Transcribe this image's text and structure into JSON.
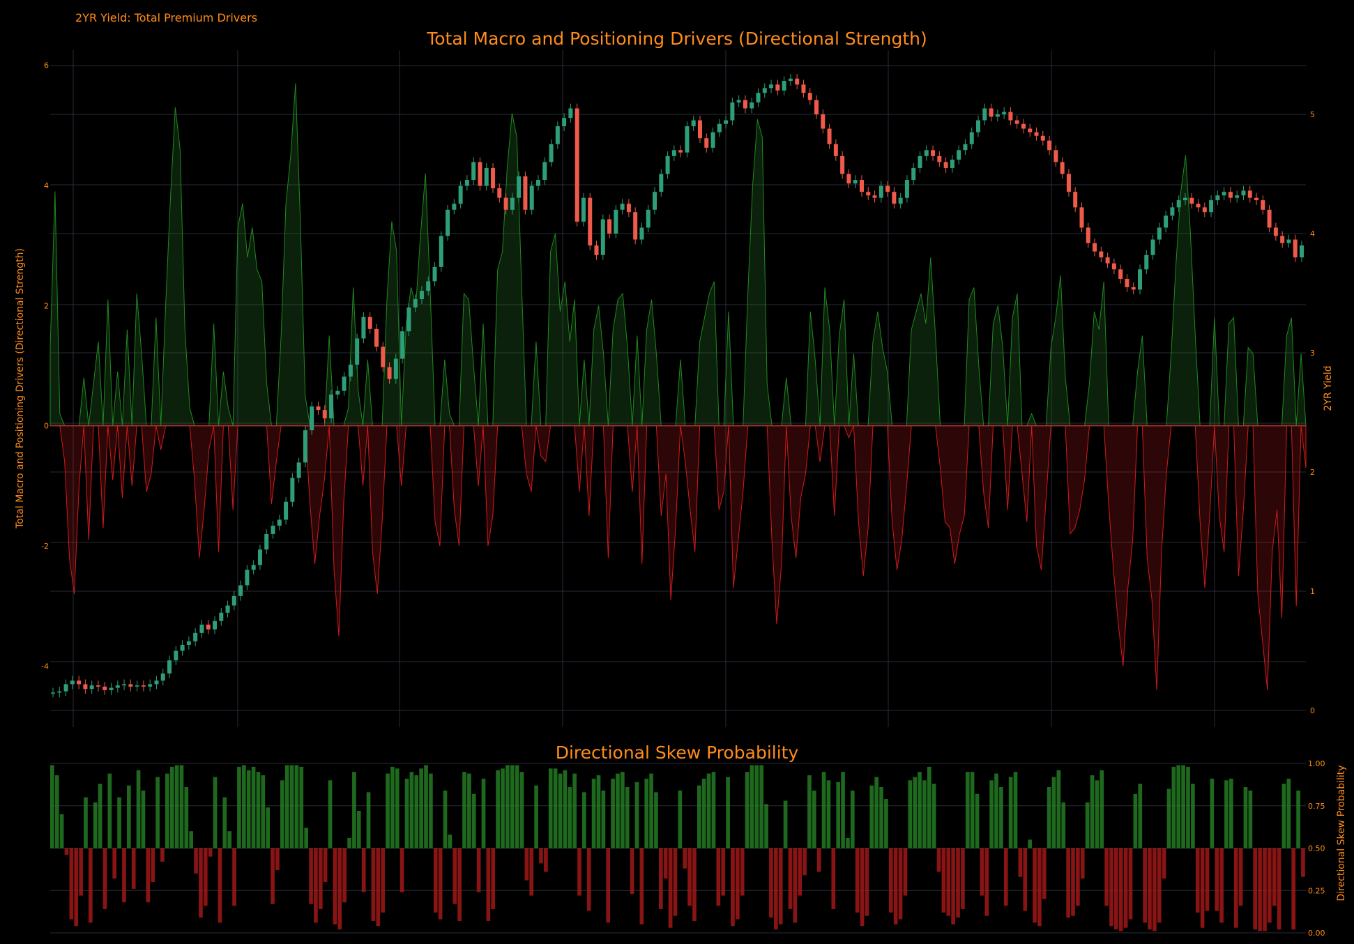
{
  "page_label": "2YR Yield: Total Premium Drivers",
  "colors": {
    "background": "#000000",
    "text": "#ff8c1a",
    "grid": "#2a2d3a",
    "positive": "#1f8a1f",
    "negative": "#d41a1a",
    "candle_up": "#2e9e78",
    "candle_down": "#ef5a4a"
  },
  "chart_data": [
    {
      "type": "area",
      "title": "Total Macro and Positioning Drivers (Directional Strength)",
      "ylabel": "Total Macro and Positioning Drivers (Directional Strength)",
      "y2label": "2YR Yield",
      "ylim": [
        -4.75,
        6.25
      ],
      "y_ticks": [
        -4,
        -2,
        0,
        2,
        4,
        6
      ],
      "y2lim": [
        0,
        5.4
      ],
      "y2_ticks": [
        0,
        1,
        2,
        3,
        4,
        5
      ],
      "grid": true,
      "legend": "none",
      "series": [
        {
          "kind": "area",
          "values": [
            1.3,
            3.9,
            0.2,
            -0.6,
            -2.2,
            -2.8,
            -1.0,
            0.8,
            -1.9,
            0.7,
            1.4,
            -1.7,
            2.1,
            -0.9,
            0.9,
            -1.2,
            1.6,
            -1.0,
            2.2,
            1.2,
            -1.1,
            -0.8,
            1.8,
            -0.4,
            2.0,
            3.8,
            5.3,
            4.6,
            1.6,
            0.3,
            -0.9,
            -2.2,
            -1.4,
            -0.4,
            1.7,
            -2.1,
            0.9,
            0.3,
            -1.4,
            3.3,
            3.7,
            2.8,
            3.3,
            2.6,
            2.4,
            0.7,
            -1.3,
            -0.6,
            1.5,
            3.7,
            4.5,
            5.7,
            3.4,
            0.5,
            -1.3,
            -2.3,
            -1.5,
            -0.9,
            1.5,
            -2.4,
            -3.5,
            -1.3,
            0.3,
            2.3,
            0.6,
            -1.0,
            1.1,
            -2.1,
            -2.8,
            -1.6,
            2.1,
            3.4,
            2.9,
            -1.0,
            1.7,
            2.3,
            2.0,
            3.2,
            4.2,
            2.2,
            -1.6,
            -2.0,
            1.1,
            0.2,
            -1.4,
            -2.0,
            2.2,
            2.1,
            1.0,
            -1.0,
            1.7,
            -2.0,
            -1.5,
            2.6,
            2.9,
            4.3,
            5.2,
            4.8,
            2.3,
            -0.8,
            -1.1,
            1.4,
            -0.5,
            -0.6,
            2.9,
            3.2,
            1.9,
            2.4,
            1.4,
            2.1,
            -1.1,
            1.1,
            -1.5,
            1.6,
            2.0,
            1.2,
            -2.2,
            1.6,
            2.1,
            2.2,
            1.3,
            -1.1,
            1.5,
            -2.3,
            1.6,
            2.1,
            1.2,
            -1.5,
            -0.8,
            -2.9,
            -1.7,
            1.1,
            -0.6,
            -1.4,
            -2.1,
            1.4,
            1.8,
            2.2,
            2.4,
            -1.4,
            -1.1,
            1.9,
            -2.7,
            -1.9,
            -1.1,
            2.2,
            4.0,
            5.1,
            4.8,
            0.7,
            -1.9,
            -3.3,
            -2.3,
            0.8,
            -1.5,
            -2.2,
            -1.2,
            -0.8,
            1.9,
            1.1,
            -0.6,
            2.3,
            1.6,
            -1.5,
            1.5,
            2.1,
            -0.2,
            1.2,
            -1.6,
            -2.5,
            -1.7,
            1.4,
            1.9,
            1.3,
            0.9,
            -1.6,
            -2.4,
            -1.9,
            -1.0,
            1.6,
            1.9,
            2.2,
            1.7,
            2.8,
            1.5,
            -0.7,
            -1.6,
            -1.7,
            -2.3,
            -1.8,
            -1.5,
            2.1,
            2.3,
            1.0,
            -1.1,
            -1.7,
            1.7,
            2.0,
            1.3,
            -1.4,
            1.8,
            2.2,
            -0.8,
            -1.6,
            0.2,
            -2.0,
            -2.4,
            -1.2,
            1.3,
            1.8,
            2.5,
            0.8,
            -1.8,
            -1.7,
            -1.4,
            -0.9,
            0.7,
            1.9,
            1.6,
            2.4,
            -1.3,
            -2.4,
            -3.3,
            -4.0,
            -2.7,
            -1.9,
            0.9,
            1.5,
            -2.2,
            -2.9,
            -4.4,
            -2.1,
            -0.8,
            1.2,
            2.7,
            3.9,
            4.5,
            3.2,
            1.5,
            -1.6,
            -2.7,
            -1.5,
            1.8,
            -1.5,
            -2.1,
            1.7,
            1.8,
            -2.5,
            -1.4,
            1.3,
            1.2,
            -2.8,
            -3.6,
            -4.4,
            -2.1,
            -1.4,
            -3.2,
            1.5,
            1.8,
            -3.0,
            1.2,
            -0.7
          ]
        },
        {
          "kind": "candlestick",
          "axis": "right",
          "name": "2YR Yield",
          "values": [
            0.15,
            0.16,
            0.22,
            0.25,
            0.22,
            0.18,
            0.21,
            0.2,
            0.17,
            0.19,
            0.21,
            0.22,
            0.2,
            0.21,
            0.2,
            0.22,
            0.25,
            0.31,
            0.42,
            0.5,
            0.55,
            0.58,
            0.65,
            0.72,
            0.68,
            0.75,
            0.82,
            0.88,
            0.96,
            1.05,
            1.18,
            1.22,
            1.35,
            1.48,
            1.55,
            1.6,
            1.75,
            1.95,
            2.08,
            2.35,
            2.55,
            2.52,
            2.45,
            2.65,
            2.68,
            2.8,
            2.9,
            3.12,
            3.3,
            3.2,
            3.05,
            2.88,
            2.78,
            2.95,
            3.18,
            3.38,
            3.45,
            3.52,
            3.6,
            3.72,
            3.98,
            4.2,
            4.25,
            4.4,
            4.45,
            4.6,
            4.4,
            4.55,
            4.38,
            4.3,
            4.2,
            4.3,
            4.48,
            4.2,
            4.4,
            4.45,
            4.6,
            4.75,
            4.9,
            4.97,
            5.05,
            4.1,
            4.3,
            3.9,
            3.82,
            4.12,
            4.0,
            4.2,
            4.25,
            4.18,
            3.95,
            4.05,
            4.2,
            4.35,
            4.5,
            4.65,
            4.7,
            4.68,
            4.9,
            4.95,
            4.8,
            4.72,
            4.85,
            4.92,
            4.95,
            5.1,
            5.12,
            5.05,
            5.1,
            5.18,
            5.22,
            5.25,
            5.2,
            5.28,
            5.3,
            5.25,
            5.18,
            5.12,
            5.0,
            4.88,
            4.75,
            4.65,
            4.5,
            4.42,
            4.45,
            4.35,
            4.32,
            4.3,
            4.4,
            4.35,
            4.25,
            4.3,
            4.45,
            4.55,
            4.65,
            4.7,
            4.65,
            4.6,
            4.55,
            4.62,
            4.7,
            4.75,
            4.85,
            4.95,
            5.05,
            4.98,
            5.0,
            5.02,
            4.95,
            4.92,
            4.88,
            4.85,
            4.82,
            4.78,
            4.7,
            4.6,
            4.5,
            4.35,
            4.22,
            4.05,
            3.92,
            3.85,
            3.8,
            3.75,
            3.7,
            3.62,
            3.55,
            3.53,
            3.7,
            3.82,
            3.95,
            4.05,
            4.15,
            4.22,
            4.28,
            4.3,
            4.25,
            4.22,
            4.18,
            4.28,
            4.32,
            4.35,
            4.3,
            4.32,
            4.36,
            4.3,
            4.28,
            4.2,
            4.05,
            3.98,
            3.92,
            3.95,
            3.8,
            3.9
          ]
        }
      ]
    },
    {
      "type": "bar",
      "title": "Directional Skew Probability",
      "ylabel": "Directional Skew Probability",
      "ylim": [
        0,
        1
      ],
      "y_ticks": [
        "0.00",
        "0.25",
        "0.50",
        "0.75",
        "1.00"
      ],
      "baseline": 0.5,
      "grid": true,
      "legend": "none",
      "values": [
        0.99,
        0.93,
        0.7,
        0.46,
        0.08,
        0.04,
        0.22,
        0.8,
        0.06,
        0.77,
        0.88,
        0.14,
        0.94,
        0.32,
        0.8,
        0.18,
        0.87,
        0.26,
        0.96,
        0.84,
        0.18,
        0.3,
        0.92,
        0.42,
        0.94,
        0.98,
        0.99,
        0.99,
        0.86,
        0.6,
        0.35,
        0.09,
        0.16,
        0.45,
        0.92,
        0.06,
        0.8,
        0.6,
        0.16,
        0.98,
        0.99,
        0.96,
        0.98,
        0.95,
        0.93,
        0.74,
        0.17,
        0.37,
        0.9,
        0.99,
        0.99,
        0.99,
        0.98,
        0.62,
        0.17,
        0.06,
        0.14,
        0.3,
        0.9,
        0.05,
        0.02,
        0.18,
        0.56,
        0.95,
        0.72,
        0.24,
        0.83,
        0.07,
        0.04,
        0.12,
        0.94,
        0.98,
        0.97,
        0.24,
        0.91,
        0.95,
        0.93,
        0.97,
        0.99,
        0.94,
        0.12,
        0.08,
        0.84,
        0.58,
        0.17,
        0.07,
        0.95,
        0.94,
        0.82,
        0.24,
        0.91,
        0.07,
        0.14,
        0.96,
        0.97,
        0.99,
        0.99,
        0.99,
        0.95,
        0.31,
        0.22,
        0.87,
        0.41,
        0.36,
        0.97,
        0.97,
        0.94,
        0.96,
        0.86,
        0.94,
        0.22,
        0.83,
        0.13,
        0.91,
        0.93,
        0.84,
        0.06,
        0.91,
        0.94,
        0.95,
        0.86,
        0.23,
        0.89,
        0.05,
        0.91,
        0.94,
        0.83,
        0.14,
        0.32,
        0.03,
        0.1,
        0.84,
        0.38,
        0.16,
        0.07,
        0.87,
        0.91,
        0.94,
        0.95,
        0.16,
        0.22,
        0.92,
        0.04,
        0.08,
        0.22,
        0.95,
        0.99,
        0.99,
        0.99,
        0.76,
        0.09,
        0.02,
        0.05,
        0.78,
        0.14,
        0.06,
        0.22,
        0.34,
        0.93,
        0.84,
        0.36,
        0.95,
        0.9,
        0.14,
        0.89,
        0.95,
        0.56,
        0.84,
        0.12,
        0.04,
        0.1,
        0.87,
        0.92,
        0.86,
        0.79,
        0.12,
        0.05,
        0.08,
        0.22,
        0.9,
        0.92,
        0.95,
        0.9,
        0.98,
        0.88,
        0.36,
        0.12,
        0.1,
        0.05,
        0.09,
        0.14,
        0.95,
        0.95,
        0.82,
        0.22,
        0.1,
        0.9,
        0.94,
        0.86,
        0.16,
        0.92,
        0.95,
        0.33,
        0.13,
        0.55,
        0.06,
        0.04,
        0.2,
        0.86,
        0.92,
        0.96,
        0.77,
        0.09,
        0.1,
        0.16,
        0.32,
        0.77,
        0.93,
        0.9,
        0.96,
        0.16,
        0.04,
        0.02,
        0.01,
        0.03,
        0.08,
        0.82,
        0.88,
        0.06,
        0.02,
        0.01,
        0.06,
        0.32,
        0.85,
        0.98,
        0.99,
        0.99,
        0.98,
        0.88,
        0.12,
        0.03,
        0.13,
        0.91,
        0.13,
        0.06,
        0.9,
        0.91,
        0.03,
        0.16,
        0.86,
        0.84,
        0.02,
        0.01,
        0.01,
        0.06,
        0.16,
        0.02,
        0.88,
        0.91,
        0.02,
        0.84,
        0.33
      ]
    }
  ]
}
